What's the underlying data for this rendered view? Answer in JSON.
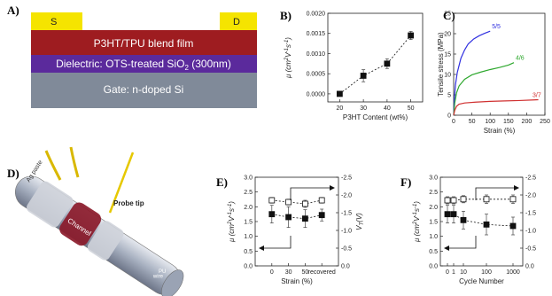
{
  "figure": {
    "panel_a": {
      "letter": "A)",
      "source_label": "S",
      "drain_label": "D",
      "film_label": "P3HT/TPU blend film",
      "dielectric_label": "Dielectric: OTS-treated SiO",
      "dielectric_sub": "2",
      "dielectric_suffix": " (300nm)",
      "gate_label": "Gate: n-doped Si",
      "colors": {
        "contact": "#f5e400",
        "film": "#9e1c20",
        "dielectric": "#5b2a9c",
        "gate": "#808a99"
      }
    },
    "panel_d": {
      "letter": "D)",
      "label_ag_paste": "Ag paste",
      "label_probe_tip": "Probe tip",
      "label_channel": "Channel",
      "label_pu_wire_line1": "PU",
      "label_pu_wire_line2": "wire"
    }
  },
  "chart_data": [
    {
      "panel": "B)",
      "type": "line",
      "xlabel": "P3HT Content (wt%)",
      "ylabel_main": "μ (cm",
      "ylabel_sup1": "2",
      "ylabel_mid": "V",
      "ylabel_sup2": "-1",
      "ylabel_mid2": "s",
      "ylabel_sup3": "-1",
      "ylabel_end": ")",
      "xlim": [
        15,
        55
      ],
      "ylim": [
        -0.0002,
        0.002
      ],
      "x_ticks": [
        "20",
        "30",
        "40",
        "50"
      ],
      "y_ticks": [
        "0.0000",
        "0.0005",
        "0.0010",
        "0.0015",
        "0.0020"
      ],
      "x": [
        20,
        30,
        40,
        50
      ],
      "y": [
        0.0,
        0.00045,
        0.00075,
        0.00145
      ],
      "err": [
        2e-05,
        0.00015,
        0.00012,
        0.0001
      ]
    },
    {
      "panel": "C)",
      "type": "line",
      "xlabel": "Strain (%)",
      "ylabel": "Tensile stress (MPa)",
      "xlim": [
        0,
        250
      ],
      "ylim": [
        0,
        25
      ],
      "x_ticks": [
        "0",
        "50",
        "100",
        "150",
        "200",
        "250"
      ],
      "y_ticks": [
        "0",
        "5",
        "10",
        "15",
        "20",
        "25"
      ],
      "series": [
        {
          "name": "5/5",
          "color": "#3030e0",
          "x": [
            0,
            2,
            5,
            10,
            20,
            30,
            40,
            55,
            70,
            85,
            100
          ],
          "y": [
            0,
            4,
            7.5,
            10.5,
            14,
            16,
            17.5,
            18.7,
            19.5,
            20.1,
            20.6
          ]
        },
        {
          "name": "4/6",
          "color": "#2ea82e",
          "x": [
            0,
            3,
            8,
            15,
            30,
            50,
            75,
            100,
            125,
            150,
            165
          ],
          "y": [
            0,
            3,
            5.5,
            7.2,
            8.8,
            9.9,
            10.6,
            11.2,
            11.7,
            12.3,
            12.9
          ]
        },
        {
          "name": "3/7",
          "color": "#d03030",
          "x": [
            0,
            3,
            8,
            15,
            30,
            60,
            100,
            140,
            180,
            220,
            232
          ],
          "y": [
            0,
            1.2,
            2.2,
            2.7,
            3.0,
            3.2,
            3.4,
            3.5,
            3.6,
            3.75,
            3.8
          ]
        }
      ]
    },
    {
      "panel": "E)",
      "type": "line",
      "xlabel": "Strain (%)",
      "ylabel_main": "μ (cm",
      "ylabel_right": "V",
      "ylabel_right_sub": "T",
      "ylabel_right_end": "(V)",
      "categories": [
        "0",
        "30",
        "50",
        "recovered"
      ],
      "ylim_left": [
        0,
        3.0
      ],
      "ylim_right": [
        0,
        -2.5
      ],
      "y_ticks_left": [
        "0.0",
        "0.5",
        "1.0",
        "1.5",
        "2.0",
        "2.5",
        "3.0"
      ],
      "y_ticks_right": [
        "0.0",
        "-0.5",
        "-1.0",
        "-1.5",
        "-2.0",
        "-2.5"
      ],
      "series": [
        {
          "marker": "open-square",
          "axis": "right",
          "values": [
            -1.85,
            -1.8,
            -1.75,
            -1.85
          ],
          "err": [
            0.08,
            0.08,
            0.1,
            0.08
          ]
        },
        {
          "marker": "filled-square",
          "axis": "left",
          "values": [
            1.75,
            1.65,
            1.6,
            1.72
          ],
          "err": [
            0.3,
            0.35,
            0.3,
            0.2
          ]
        }
      ]
    },
    {
      "panel": "F)",
      "type": "line",
      "xlabel": "Cycle Number",
      "ylabel_main": "μ (cm",
      "categories": [
        "0",
        "1",
        "10",
        "100",
        "1000"
      ],
      "ylim_left": [
        0,
        3.0
      ],
      "ylim_right": [
        0,
        -2.5
      ],
      "y_ticks_left": [
        "0.0",
        "0.5",
        "1.0",
        "1.5",
        "2.0",
        "2.5",
        "3.0"
      ],
      "y_ticks_right": [
        "0.0",
        "-0.5",
        "-1.0",
        "-1.5",
        "-2.0",
        "-2.5"
      ],
      "series": [
        {
          "marker": "open-square",
          "axis": "right",
          "x_pos": [
            0,
            1,
            10,
            100,
            1000
          ],
          "values": [
            -1.85,
            -1.85,
            -1.88,
            -1.88,
            -1.88
          ],
          "err": [
            0.1,
            0.1,
            0.1,
            0.12,
            0.12
          ]
        },
        {
          "marker": "filled-square",
          "axis": "left",
          "x_pos": [
            0,
            1,
            10,
            100,
            1000
          ],
          "values": [
            1.75,
            1.75,
            1.55,
            1.4,
            1.35
          ],
          "err": [
            0.3,
            0.3,
            0.3,
            0.35,
            0.3
          ]
        }
      ]
    }
  ]
}
